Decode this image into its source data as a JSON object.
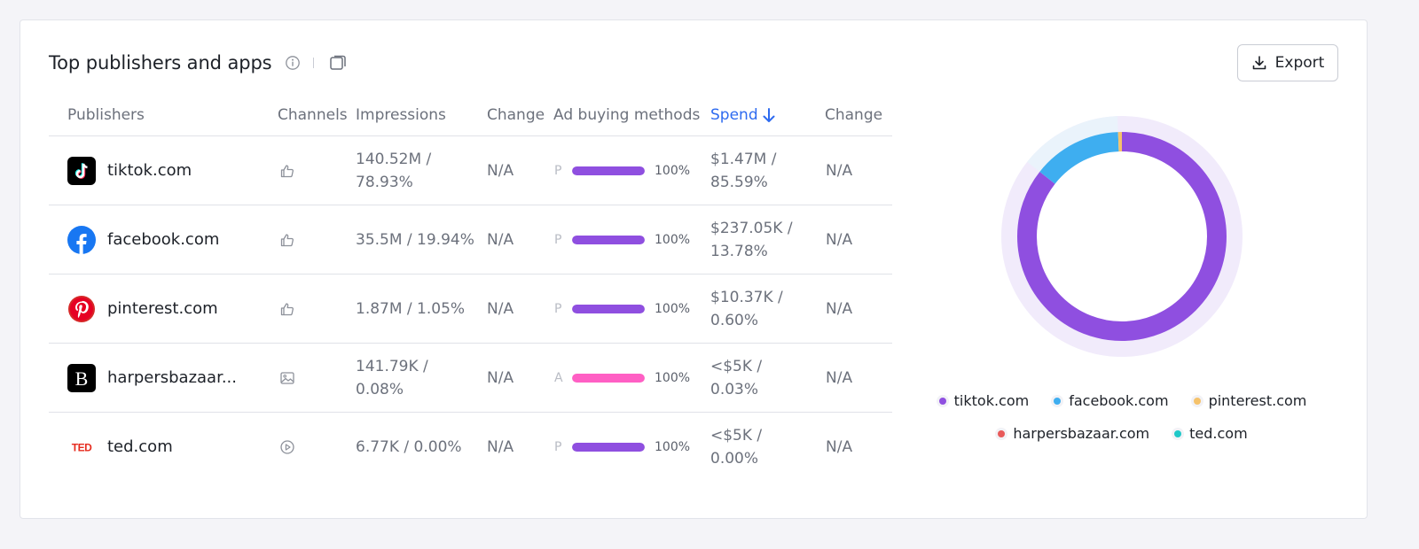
{
  "widget": {
    "title": "Top publishers and apps",
    "export_label": "Export",
    "info_icon": "info-icon",
    "copy_icon": "copy-icon",
    "export_icon": "download-icon"
  },
  "table": {
    "columns": {
      "publishers": "Publishers",
      "channels": "Channels",
      "impressions": "Impressions",
      "change": "Change",
      "ad_buying": "Ad buying methods",
      "spend": "Spend",
      "change2": "Change"
    },
    "sort": {
      "column": "Spend",
      "direction": "descending"
    },
    "rows": [
      {
        "publisher": "tiktok.com",
        "logo_icon": "tiktok-logo-icon",
        "channel_icon": "thumbs-up-icon",
        "impressions": "140.52M / 78.93%",
        "change": "N/A",
        "method_letter": "P",
        "method_color": "#8f4fe0",
        "method_share": 1.0,
        "method_pct": "100%",
        "spend": "$1.47M / 85.59%",
        "change2": "N/A"
      },
      {
        "publisher": "facebook.com",
        "logo_icon": "facebook-logo-icon",
        "channel_icon": "thumbs-up-icon",
        "impressions": "35.5M / 19.94%",
        "change": "N/A",
        "method_letter": "P",
        "method_color": "#8f4fe0",
        "method_share": 1.0,
        "method_pct": "100%",
        "spend": "$237.05K / 13.78%",
        "change2": "N/A"
      },
      {
        "publisher": "pinterest.com",
        "logo_icon": "pinterest-logo-icon",
        "channel_icon": "thumbs-up-icon",
        "impressions": "1.87M / 1.05%",
        "change": "N/A",
        "method_letter": "P",
        "method_color": "#8f4fe0",
        "method_share": 1.0,
        "method_pct": "100%",
        "spend": "$10.37K / 0.60%",
        "change2": "N/A"
      },
      {
        "publisher": "harpersbazaar...",
        "logo_icon": "harpersbazaar-logo-icon",
        "channel_icon": "image-icon",
        "impressions": "141.79K / 0.08%",
        "change": "N/A",
        "method_letter": "A",
        "method_color": "#ff5fc4",
        "method_share": 1.0,
        "method_pct": "100%",
        "spend": "<$5K / 0.03%",
        "change2": "N/A"
      },
      {
        "publisher": "ted.com",
        "logo_icon": "ted-logo-icon",
        "channel_icon": "play-circle-icon",
        "impressions": "6.77K / 0.00%",
        "change": "N/A",
        "method_letter": "P",
        "method_color": "#8f4fe0",
        "method_share": 1.0,
        "method_pct": "100%",
        "spend": "<$5K / 0.00%",
        "change2": "N/A"
      }
    ]
  },
  "donut": {
    "segments": [
      {
        "name": "tiktok.com",
        "share": 85.59,
        "color": "#8f4fe0"
      },
      {
        "name": "facebook.com",
        "share": 13.78,
        "color": "#3eaef0"
      },
      {
        "name": "pinterest.com",
        "share": 0.6,
        "color": "#f5c26b"
      },
      {
        "name": "harpersbazaar.com",
        "share": 0.03,
        "color": "#e85a5a"
      },
      {
        "name": "ted.com",
        "share": 0.0,
        "color": "#1fc8c8"
      }
    ],
    "outer_ring_color": "#f1ebfb",
    "outer_ring_accent": "#eaf3fb"
  },
  "legend": {
    "items": [
      {
        "label": "tiktok.com",
        "color": "#8f4fe0"
      },
      {
        "label": "facebook.com",
        "color": "#3eaef0"
      },
      {
        "label": "pinterest.com",
        "color": "#f5c26b"
      },
      {
        "label": "harpersbazaar.com",
        "color": "#e85a5a"
      },
      {
        "label": "ted.com",
        "color": "#1fc8c8"
      }
    ]
  }
}
